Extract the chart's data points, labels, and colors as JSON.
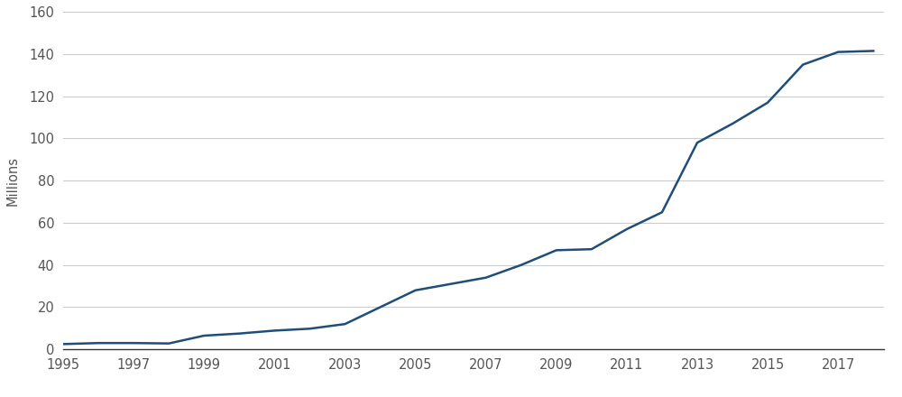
{
  "years": [
    1995,
    1996,
    1997,
    1998,
    1999,
    2000,
    2001,
    2002,
    2003,
    2004,
    2005,
    2006,
    2007,
    2008,
    2009,
    2010,
    2011,
    2012,
    2013,
    2014,
    2015,
    2016,
    2017,
    2018
  ],
  "values": [
    2.5,
    3.0,
    3.0,
    2.8,
    6.5,
    7.5,
    8.9,
    9.8,
    12.0,
    20.0,
    28.0,
    31.0,
    34.0,
    40.0,
    47.0,
    47.5,
    57.0,
    65.0,
    98.0,
    107.0,
    117.0,
    135.0,
    141.0,
    141.5
  ],
  "line_color": "#1f4e79",
  "line_width": 1.8,
  "ylabel": "Millions",
  "ylim": [
    0,
    160
  ],
  "yticks": [
    0,
    20,
    40,
    60,
    80,
    100,
    120,
    140,
    160
  ],
  "xlim": [
    1995,
    2018.3
  ],
  "xticks": [
    1995,
    1997,
    1999,
    2001,
    2003,
    2005,
    2007,
    2009,
    2011,
    2013,
    2015,
    2017
  ],
  "background_color": "#ffffff",
  "grid_color": "#cccccc",
  "tick_label_fontsize": 10.5,
  "ylabel_fontsize": 10.5
}
